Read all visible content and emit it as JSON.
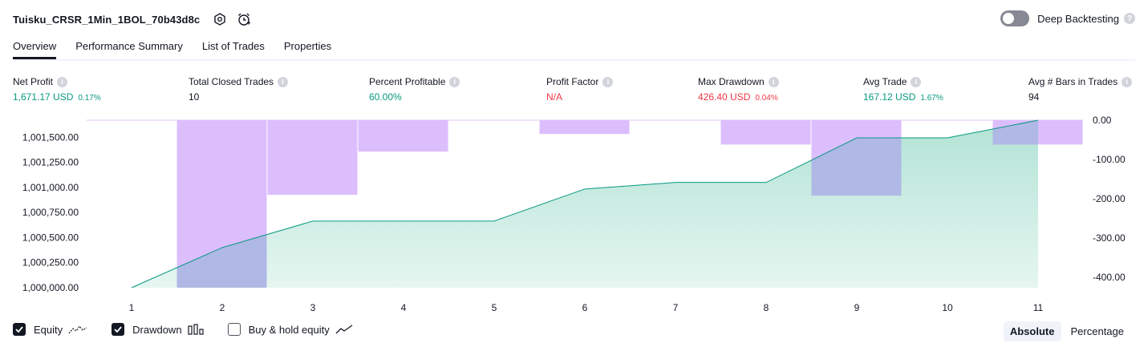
{
  "header": {
    "strategy_name": "Tuisku_CRSR_1Min_1BOL_70b43d8c",
    "deep_backtesting_label": "Deep Backtesting",
    "help_mark": "?"
  },
  "tabs": [
    "Overview",
    "Performance Summary",
    "List of Trades",
    "Properties"
  ],
  "metrics": [
    {
      "label": "Net Profit",
      "value": "1,671.17 USD",
      "pct": "0.17%",
      "color": "#089981"
    },
    {
      "label": "Total Closed Trades",
      "value": "10",
      "pct": "",
      "color": "#131722"
    },
    {
      "label": "Percent Profitable",
      "value": "60.00%",
      "pct": "",
      "color": "#089981"
    },
    {
      "label": "Profit Factor",
      "value": "N/A",
      "pct": "",
      "color": "#f23645"
    },
    {
      "label": "Max Drawdown",
      "value": "426.40 USD",
      "pct": "0.04%",
      "color": "#f23645"
    },
    {
      "label": "Avg Trade",
      "value": "167.12 USD",
      "pct": "1.67%",
      "color": "#089981"
    },
    {
      "label": "Avg # Bars in Trades",
      "value": "94",
      "pct": "",
      "color": "#131722"
    }
  ],
  "info_mark": "i",
  "chart_data": {
    "type": "area",
    "x": [
      1,
      2,
      3,
      4,
      5,
      6,
      7,
      8,
      9,
      10,
      11
    ],
    "x_tick_labels": [
      "1",
      "2",
      "3",
      "4",
      "5",
      "6",
      "7",
      "8",
      "9",
      "10",
      "11"
    ],
    "series": [
      {
        "name": "Equity",
        "type": "area",
        "axis": "left",
        "values": [
          1000000,
          1000400,
          1000665,
          1000665,
          1000665,
          1000985,
          1001050,
          1001050,
          1001495,
          1001495,
          1001671.17
        ]
      },
      {
        "name": "Drawdown",
        "type": "bar",
        "axis": "right",
        "values": [
          0,
          -426.4,
          -190,
          -80,
          0,
          -35,
          0,
          -62,
          -192,
          0,
          -62
        ]
      }
    ],
    "left_axis": {
      "range": [
        1000000,
        1001671.17
      ],
      "ticks": [
        1000000,
        1000250,
        1000500,
        1000750,
        1001000,
        1001250,
        1001500
      ],
      "tick_labels": [
        "1,000,000.00",
        "1,000,250.00",
        "1,000,500.00",
        "1,000,750.00",
        "1,001,000.00",
        "1,001,250.00",
        "1,001,500.00"
      ]
    },
    "right_axis": {
      "range": [
        -426.4,
        0
      ],
      "ticks": [
        0,
        -100,
        -200,
        -300,
        -400
      ],
      "tick_labels": [
        "0.00",
        "-100.00",
        "-200.00",
        "-300.00",
        "-400.00"
      ]
    },
    "grid": false,
    "colors": {
      "equity_line": "#089981",
      "equity_fill_top": "#b2e3d5",
      "equity_fill_bottom": "#e6f6f1",
      "drawdown": "#dcbefd",
      "overlap": "#b0b8e6"
    }
  },
  "legend": [
    {
      "label": "Equity",
      "checked": true,
      "icon": "equity-wave-icon"
    },
    {
      "label": "Drawdown",
      "checked": true,
      "icon": "drawdown-bars-icon"
    },
    {
      "label": "Buy & hold equity",
      "checked": false,
      "icon": "buy-hold-line-icon"
    }
  ],
  "scale_toggle": {
    "options": [
      "Absolute",
      "Percentage"
    ],
    "selected": "Absolute"
  }
}
